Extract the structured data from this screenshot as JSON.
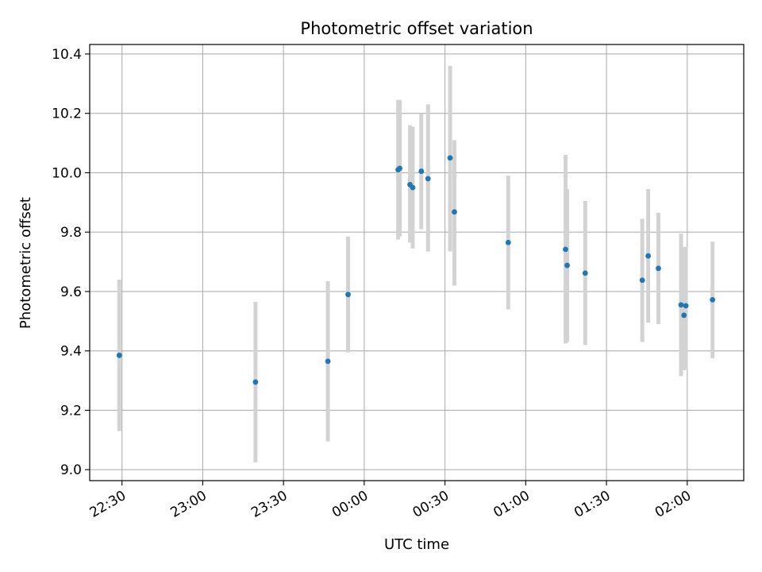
{
  "chart_data": {
    "type": "scatter",
    "title": "Photometric offset variation",
    "xlabel": "UTC time",
    "ylabel": "Photometric offset",
    "x_ticks": [
      "22:30",
      "23:00",
      "23:30",
      "00:00",
      "00:30",
      "01:00",
      "01:30",
      "02:00"
    ],
    "x_tick_minutes": [
      0,
      30,
      60,
      90,
      120,
      150,
      180,
      210
    ],
    "xlim_minutes": [
      -12,
      231
    ],
    "y_ticks": [
      "9.0",
      "9.2",
      "9.4",
      "9.6",
      "9.8",
      "10.0",
      "10.2",
      "10.4"
    ],
    "y_tick_values": [
      9.0,
      9.2,
      9.4,
      9.6,
      9.8,
      10.0,
      10.2,
      10.4
    ],
    "ylim": [
      8.963,
      10.432
    ],
    "grid": true,
    "colors": {
      "points": "#1f77b4",
      "errorbars": "#d3d3d3",
      "grid": "#b0b0b0"
    },
    "points": [
      {
        "t": -1,
        "y": 9.385,
        "lo": 9.13,
        "hi": 9.64
      },
      {
        "t": 49.6,
        "y": 9.295,
        "lo": 9.025,
        "hi": 9.565
      },
      {
        "t": 76.5,
        "y": 9.365,
        "lo": 9.095,
        "hi": 9.635
      },
      {
        "t": 84.0,
        "y": 9.59,
        "lo": 9.395,
        "hi": 9.785
      },
      {
        "t": 102.6,
        "y": 10.01,
        "lo": 9.775,
        "hi": 10.245
      },
      {
        "t": 103.2,
        "y": 10.015,
        "lo": 9.785,
        "hi": 10.245
      },
      {
        "t": 107.0,
        "y": 9.96,
        "lo": 9.765,
        "hi": 10.16
      },
      {
        "t": 108.0,
        "y": 9.95,
        "lo": 9.745,
        "hi": 10.155
      },
      {
        "t": 111.2,
        "y": 10.005,
        "lo": 9.81,
        "hi": 10.2
      },
      {
        "t": 113.7,
        "y": 9.98,
        "lo": 9.735,
        "hi": 10.23
      },
      {
        "t": 121.9,
        "y": 10.05,
        "lo": 9.735,
        "hi": 10.36
      },
      {
        "t": 123.5,
        "y": 9.868,
        "lo": 9.62,
        "hi": 10.11
      },
      {
        "t": 143.5,
        "y": 9.765,
        "lo": 9.54,
        "hi": 9.99
      },
      {
        "t": 164.8,
        "y": 9.742,
        "lo": 9.425,
        "hi": 10.06
      },
      {
        "t": 165.4,
        "y": 9.688,
        "lo": 9.43,
        "hi": 9.945
      },
      {
        "t": 172.1,
        "y": 9.662,
        "lo": 9.42,
        "hi": 9.905
      },
      {
        "t": 193.3,
        "y": 9.638,
        "lo": 9.43,
        "hi": 9.845
      },
      {
        "t": 195.5,
        "y": 9.72,
        "lo": 9.495,
        "hi": 9.945
      },
      {
        "t": 199.3,
        "y": 9.678,
        "lo": 9.49,
        "hi": 9.865
      },
      {
        "t": 207.7,
        "y": 9.555,
        "lo": 9.315,
        "hi": 9.795
      },
      {
        "t": 208.8,
        "y": 9.52,
        "lo": 9.335,
        "hi": 9.75
      },
      {
        "t": 209.5,
        "y": 9.552,
        "lo": 9.34,
        "hi": 9.75
      },
      {
        "t": 219.4,
        "y": 9.572,
        "lo": 9.375,
        "hi": 9.768
      }
    ]
  }
}
